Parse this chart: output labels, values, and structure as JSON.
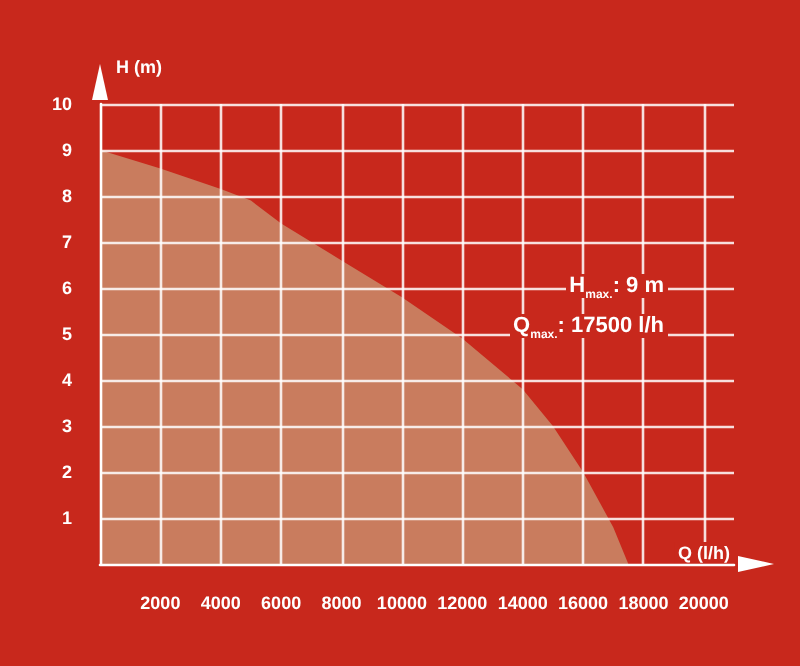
{
  "chart_data": {
    "type": "area",
    "xlabel": "Q (l/h)",
    "ylabel": "H (m)",
    "x": [
      0,
      2000,
      4000,
      5000,
      6000,
      8000,
      10000,
      12000,
      14000,
      15000,
      16000,
      17000,
      17500
    ],
    "series": [
      {
        "color": "#c97c5e",
        "values": [
          9,
          8.6,
          8.15,
          7.9,
          7.4,
          6.6,
          5.8,
          4.9,
          3.8,
          3.0,
          2.0,
          0.8,
          0
        ]
      }
    ],
    "xlim": [
      0,
      21000
    ],
    "xticks": [
      2000,
      4000,
      6000,
      8000,
      10000,
      12000,
      14000,
      16000,
      18000,
      20000
    ],
    "ylim": [
      0,
      10
    ],
    "yticks": [
      1,
      2,
      3,
      4,
      5,
      6,
      7,
      8,
      9,
      10
    ],
    "grid": true,
    "marker": "none",
    "annotations": [
      "H$_{max.}$: 9 m",
      "Q$_{max.}$: 17500 l/h"
    ]
  }
}
